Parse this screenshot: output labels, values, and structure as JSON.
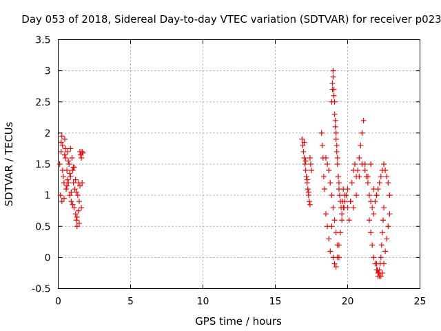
{
  "chart_data": {
    "type": "scatter",
    "title": "Day 053 of 2018, Sidereal Day-to-day VTEC variation (SDTVAR) for receiver p023",
    "xlabel": "GPS time / hours",
    "ylabel": "SDTVAR / TECUs",
    "xlim": [
      0,
      25
    ],
    "ylim": [
      -0.5,
      3.5
    ],
    "xticks": [
      0,
      5,
      10,
      15,
      20,
      25
    ],
    "xtick_labels": [
      "0",
      "5",
      "10",
      "15",
      "20",
      "25"
    ],
    "yticks": [
      -0.5,
      0,
      0.5,
      1,
      1.5,
      2,
      2.5,
      3,
      3.5
    ],
    "ytick_labels": [
      "-0.5",
      "0",
      "0.5",
      "1",
      "1.5",
      "2",
      "2.5",
      "3",
      "3.5"
    ],
    "grid": true,
    "marker": "+",
    "color": "#ff0000",
    "series": [
      {
        "name": "SDTVAR",
        "x": [
          0.1,
          0.15,
          0.2,
          0.25,
          0.3,
          0.35,
          0.4,
          0.45,
          0.5,
          0.55,
          0.6,
          0.65,
          0.7,
          0.75,
          0.8,
          0.85,
          0.9,
          0.95,
          1.0,
          1.05,
          1.1,
          1.15,
          1.2,
          1.25,
          1.3,
          1.35,
          1.4,
          1.45,
          1.5,
          1.55,
          1.6,
          1.65,
          1.7,
          0.2,
          0.3,
          0.4,
          0.5,
          0.6,
          0.7,
          0.8,
          0.9,
          1.0,
          1.1,
          1.2,
          1.3,
          1.4,
          1.5,
          1.6,
          0.25,
          0.45,
          0.65,
          0.85,
          1.05,
          1.25,
          1.45,
          1.65,
          16.85,
          16.9,
          16.95,
          17.0,
          17.05,
          17.1,
          17.15,
          17.2,
          17.25,
          17.3,
          17.35,
          17.4,
          17.45,
          17.5,
          17.0,
          17.1,
          17.2,
          17.3,
          17.4,
          18.2,
          18.25,
          18.3,
          18.35,
          18.4,
          18.5,
          18.6,
          18.7,
          18.8,
          18.9,
          18.95,
          19.0,
          19.05,
          19.1,
          19.15,
          19.2,
          19.25,
          19.3,
          19.35,
          19.4,
          19.45,
          19.5,
          19.55,
          19.6,
          19.65,
          19.7,
          19.75,
          19.8,
          19.9,
          20.0,
          20.1,
          20.2,
          20.3,
          20.4,
          20.5,
          20.6,
          20.7,
          20.8,
          20.9,
          21.0,
          21.1,
          21.2,
          21.3,
          21.4,
          21.5,
          21.6,
          21.7,
          21.8,
          21.9,
          22.0,
          22.1,
          22.2,
          22.3,
          22.4,
          22.5,
          22.6,
          22.7,
          22.8,
          22.9,
          19.0,
          19.1,
          19.2,
          19.3,
          19.4,
          19.5,
          19.6,
          19.7,
          19.8,
          20.0,
          20.2,
          20.4,
          20.6,
          20.8,
          21.0,
          21.2,
          21.4,
          21.6,
          21.8,
          22.0,
          21.5,
          21.6,
          21.7,
          21.8,
          21.9,
          22.0,
          22.1,
          22.2,
          22.3,
          22.4,
          22.5,
          22.6,
          22.7,
          22.8,
          22.9,
          18.9,
          18.95,
          19.0,
          19.05,
          19.1,
          19.15,
          19.2,
          19.25,
          19.3,
          19.35,
          19.4,
          18.5,
          18.6,
          18.7,
          18.8,
          18.9,
          19.0,
          19.1,
          19.2,
          19.3,
          19.4,
          22.0,
          22.05,
          22.1,
          22.15,
          22.2,
          22.25,
          22.3,
          22.35,
          22.4,
          22.45,
          22.5
        ],
        "y": [
          1.5,
          1.0,
          1.7,
          0.9,
          1.8,
          1.3,
          1.2,
          1.9,
          1.6,
          1.1,
          1.4,
          1.7,
          1.2,
          1.5,
          1.0,
          1.3,
          0.9,
          1.6,
          1.4,
          1.2,
          0.8,
          1.1,
          0.7,
          0.6,
          0.5,
          1.0,
          1.2,
          0.9,
          1.7,
          1.65,
          1.6,
          1.7,
          1.68,
          1.85,
          1.4,
          0.95,
          1.75,
          1.15,
          1.55,
          1.35,
          1.05,
          0.85,
          1.45,
          1.25,
          0.65,
          0.75,
          1.15,
          0.8,
          1.95,
          1.65,
          1.25,
          1.75,
          1.45,
          1.05,
          0.55,
          1.2,
          1.9,
          1.8,
          1.7,
          1.6,
          1.5,
          1.4,
          1.3,
          1.2,
          1.1,
          1.0,
          0.9,
          1.6,
          1.5,
          1.4,
          1.85,
          1.55,
          1.25,
          1.05,
          0.85,
          2.0,
          1.8,
          1.6,
          1.3,
          1.1,
          0.7,
          0.5,
          0.3,
          0.1,
          0.5,
          2.8,
          3.0,
          2.7,
          2.5,
          2.2,
          2.0,
          1.8,
          1.6,
          1.3,
          1.2,
          1.0,
          0.9,
          0.8,
          0.7,
          0.9,
          1.1,
          0.8,
          0.9,
          1.0,
          0.8,
          0.6,
          0.9,
          1.2,
          1.4,
          1.5,
          1.3,
          1.4,
          1.6,
          1.8,
          2.0,
          2.2,
          1.5,
          1.3,
          1.2,
          1.0,
          0.9,
          0.8,
          0.7,
          0.9,
          1.0,
          1.1,
          1.2,
          1.3,
          1.4,
          1.5,
          1.4,
          1.3,
          1.2,
          1.0,
          0.0,
          -0.1,
          -0.15,
          0.0,
          0.2,
          0.4,
          0.6,
          0.8,
          1.0,
          1.1,
          0.9,
          0.8,
          1.0,
          1.3,
          1.5,
          1.4,
          1.3,
          1.5,
          1.1,
          1.0,
          0.6,
          0.4,
          0.2,
          0.0,
          -0.1,
          -0.2,
          -0.25,
          -0.3,
          -0.3,
          -0.25,
          -0.1,
          0.1,
          0.3,
          0.5,
          0.7,
          2.5,
          2.7,
          2.9,
          2.6,
          2.3,
          2.1,
          1.9,
          1.7,
          1.5,
          1.3,
          1.1,
          1.6,
          1.5,
          1.4,
          1.2,
          1.0,
          0.8,
          0.6,
          0.4,
          0.2,
          0.0,
          -0.1,
          -0.2,
          -0.3,
          -0.25,
          -0.2,
          -0.1,
          0.0,
          0.2,
          0.4,
          0.6,
          0.8
        ]
      }
    ]
  }
}
